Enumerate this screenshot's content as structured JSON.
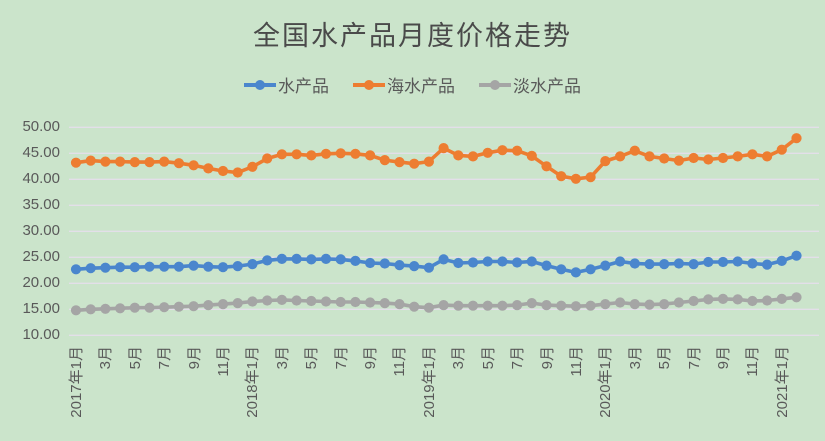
{
  "title": "全国水产品月度价格走势",
  "background_color": "#cbe4cb",
  "text_color": "#595959",
  "title_color": "#4a4a4a",
  "gridline_color": "#e3dfe9",
  "legend": [
    {
      "label": "水产品",
      "color": "#4a86cd"
    },
    {
      "label": "海水产品",
      "color": "#ed7d31"
    },
    {
      "label": "淡水产品",
      "color": "#a5a5a5"
    }
  ],
  "y_axis": {
    "tick_labels": [
      "50.00",
      "45.00",
      "40.00",
      "35.00",
      "30.00",
      "25.00",
      "20.00",
      "15.00",
      "10.00"
    ],
    "min": 10,
    "max": 50,
    "step": 5,
    "decimals": 2
  },
  "x_axis": {
    "label_every": 2,
    "shown_labels": [
      "2017年1月",
      "3月",
      "5月",
      "7月",
      "9月",
      "11月",
      "2018年1月",
      "3月",
      "5月",
      "7月",
      "9月",
      "11月",
      "2019年1月",
      "3月",
      "5月",
      "7月",
      "9月",
      "11月",
      "2020年1月",
      "3月",
      "5月",
      "7月",
      "9月",
      "11月",
      "2021年1月"
    ]
  },
  "chart_data": {
    "type": "line",
    "title": "全国水产品月度价格走势",
    "xlabel": "",
    "ylabel": "",
    "ylim": [
      10,
      50
    ],
    "ytick_step": 5,
    "grid": true,
    "legend_position": "top",
    "categories": [
      "2017年1月",
      "2月",
      "3月",
      "4月",
      "5月",
      "6月",
      "7月",
      "8月",
      "9月",
      "10月",
      "11月",
      "12月",
      "2018年1月",
      "2月",
      "3月",
      "4月",
      "5月",
      "6月",
      "7月",
      "8月",
      "9月",
      "10月",
      "11月",
      "12月",
      "2019年1月",
      "2月",
      "3月",
      "4月",
      "5月",
      "6月",
      "7月",
      "8月",
      "9月",
      "10月",
      "11月",
      "12月",
      "2020年1月",
      "2月",
      "3月",
      "4月",
      "5月",
      "6月",
      "7月",
      "8月",
      "9月",
      "10月",
      "11月",
      "12月",
      "2021年1月",
      "2月"
    ],
    "series": [
      {
        "name": "水产品",
        "color": "#4a86cd",
        "values": [
          22.7,
          22.9,
          23.0,
          23.1,
          23.1,
          23.2,
          23.2,
          23.2,
          23.4,
          23.2,
          23.1,
          23.3,
          23.7,
          24.4,
          24.7,
          24.7,
          24.6,
          24.7,
          24.6,
          24.3,
          23.9,
          23.8,
          23.5,
          23.3,
          23.0,
          24.6,
          23.9,
          24.0,
          24.2,
          24.2,
          24.0,
          24.2,
          23.4,
          22.7,
          22.1,
          22.7,
          23.4,
          24.2,
          23.8,
          23.7,
          23.7,
          23.8,
          23.7,
          24.1,
          24.1,
          24.2,
          23.8,
          23.6,
          24.3,
          25.3
        ]
      },
      {
        "name": "海水产品",
        "color": "#ed7d31",
        "values": [
          43.2,
          43.6,
          43.4,
          43.4,
          43.3,
          43.3,
          43.4,
          43.1,
          42.7,
          42.1,
          41.6,
          41.3,
          42.4,
          44.0,
          44.8,
          44.8,
          44.6,
          44.9,
          45.0,
          44.9,
          44.6,
          43.7,
          43.3,
          43.0,
          43.4,
          46.0,
          44.6,
          44.4,
          45.1,
          45.6,
          45.5,
          44.5,
          42.5,
          40.6,
          40.1,
          40.4,
          43.5,
          44.4,
          45.5,
          44.4,
          44.0,
          43.6,
          44.1,
          43.8,
          44.1,
          44.4,
          44.8,
          44.4,
          45.7,
          47.9
        ]
      },
      {
        "name": "淡水产品",
        "color": "#a5a5a5",
        "values": [
          14.8,
          15.0,
          15.1,
          15.2,
          15.3,
          15.3,
          15.4,
          15.5,
          15.6,
          15.8,
          16.0,
          16.2,
          16.5,
          16.7,
          16.8,
          16.7,
          16.6,
          16.5,
          16.4,
          16.4,
          16.3,
          16.2,
          16.0,
          15.5,
          15.3,
          15.8,
          15.7,
          15.7,
          15.7,
          15.7,
          15.8,
          16.2,
          15.8,
          15.7,
          15.6,
          15.7,
          16.0,
          16.3,
          16.0,
          15.9,
          16.0,
          16.3,
          16.6,
          16.9,
          17.0,
          16.9,
          16.6,
          16.7,
          17.0,
          17.3
        ]
      }
    ]
  }
}
